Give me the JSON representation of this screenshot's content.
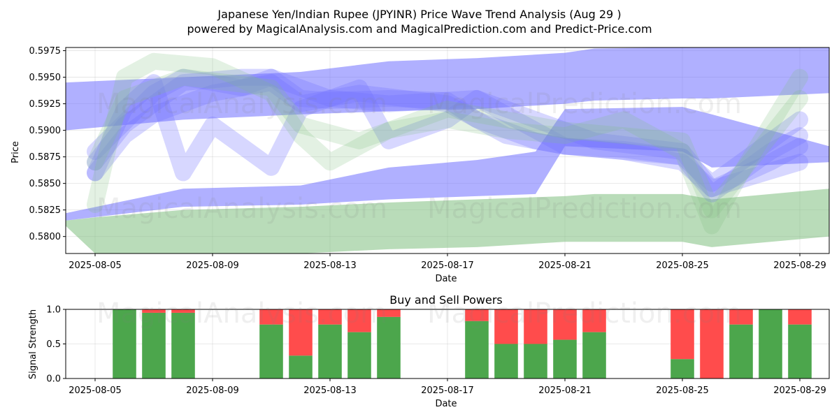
{
  "header": {
    "title": "Japanese Yen/Indian Rupee (JPYINR) Price Wave Trend Analysis (Aug 29 )",
    "subtitle": "powered by MagicalAnalysis.com and MagicalPrediction.com and Predict-Price.com"
  },
  "watermarks": [
    "MagicalAnalysis.com",
    "MagicalPrediction.com"
  ],
  "chart_data": [
    {
      "type": "area",
      "title": "",
      "xlabel": "Date",
      "ylabel": "Price",
      "x_range": [
        "2025-08-04",
        "2025-08-30"
      ],
      "ylim": [
        0.5784,
        0.5978
      ],
      "grid": true,
      "x_ticks": [
        "2025-08-05",
        "2025-08-09",
        "2025-08-13",
        "2025-08-17",
        "2025-08-21",
        "2025-08-25",
        "2025-08-29"
      ],
      "y_ticks": [
        "0.5800",
        "0.5825",
        "0.5850",
        "0.5875",
        "0.5900",
        "0.5925",
        "0.5950",
        "0.5975"
      ],
      "colors": {
        "blue": "#6f6fff",
        "green": "#7fbf7f"
      },
      "bands": [
        {
          "color": "blue",
          "x": [
            "2025-08-04",
            "2025-08-08",
            "2025-08-12",
            "2025-08-15",
            "2025-08-18",
            "2025-08-21",
            "2025-08-22",
            "2025-08-25",
            "2025-08-26",
            "2025-08-30"
          ],
          "lower": [
            0.59,
            0.591,
            0.5915,
            0.5918,
            0.592,
            0.5925,
            0.5928,
            0.593,
            0.593,
            0.5935
          ],
          "upper": [
            0.5945,
            0.595,
            0.5955,
            0.5965,
            0.5968,
            0.5973,
            0.5977,
            0.5978,
            0.5978,
            0.5978
          ]
        },
        {
          "color": "blue",
          "x": [
            "2025-08-04",
            "2025-08-08",
            "2025-08-12",
            "2025-08-15",
            "2025-08-18",
            "2025-08-20",
            "2025-08-21",
            "2025-08-25",
            "2025-08-26",
            "2025-08-30"
          ],
          "lower": [
            0.5815,
            0.5828,
            0.583,
            0.5835,
            0.5838,
            0.584,
            0.5885,
            0.588,
            0.5865,
            0.587
          ],
          "upper": [
            0.5822,
            0.5845,
            0.5848,
            0.5865,
            0.5872,
            0.588,
            0.592,
            0.5922,
            0.5915,
            0.5885
          ]
        },
        {
          "color": "green",
          "x": [
            "2025-08-04",
            "2025-08-05",
            "2025-08-08",
            "2025-08-12",
            "2025-08-15",
            "2025-08-18",
            "2025-08-21",
            "2025-08-22",
            "2025-08-25",
            "2025-08-26",
            "2025-08-30"
          ],
          "lower": [
            0.581,
            0.5784,
            0.5784,
            0.5784,
            0.5788,
            0.579,
            0.5795,
            0.5795,
            0.5795,
            0.579,
            0.58
          ],
          "upper": [
            0.5815,
            0.5818,
            0.5825,
            0.5828,
            0.5832,
            0.5835,
            0.5838,
            0.584,
            0.584,
            0.5835,
            0.5845
          ]
        }
      ],
      "wave_lines": [
        {
          "color": "blue",
          "x": [
            "2025-08-05",
            "2025-08-06",
            "2025-08-07",
            "2025-08-08",
            "2025-08-10",
            "2025-08-11",
            "2025-08-12",
            "2025-08-13",
            "2025-08-15",
            "2025-08-17",
            "2025-08-18",
            "2025-08-20",
            "2025-08-21",
            "2025-08-23",
            "2025-08-25",
            "2025-08-26",
            "2025-08-27",
            "2025-08-28",
            "2025-08-29"
          ],
          "y": [
            0.587,
            0.5905,
            0.5925,
            0.5945,
            0.595,
            0.595,
            0.593,
            0.5928,
            0.593,
            0.5928,
            0.591,
            0.589,
            0.5885,
            0.5882,
            0.5875,
            0.584,
            0.586,
            0.588,
            0.5895
          ]
        },
        {
          "color": "blue",
          "x": [
            "2025-08-05",
            "2025-08-06",
            "2025-08-07",
            "2025-08-09",
            "2025-08-11",
            "2025-08-12",
            "2025-08-14",
            "2025-08-17",
            "2025-08-19",
            "2025-08-21",
            "2025-08-23",
            "2025-08-25",
            "2025-08-26",
            "2025-08-28",
            "2025-08-29"
          ],
          "y": [
            0.586,
            0.5895,
            0.5915,
            0.5935,
            0.5945,
            0.5925,
            0.5935,
            0.5925,
            0.5895,
            0.5885,
            0.588,
            0.587,
            0.5845,
            0.587,
            0.5885
          ]
        },
        {
          "color": "blue",
          "x": [
            "2025-08-05",
            "2025-08-07",
            "2025-08-08",
            "2025-08-10",
            "2025-08-11",
            "2025-08-13",
            "2025-08-15",
            "2025-08-18",
            "2025-08-21",
            "2025-08-25",
            "2025-08-26",
            "2025-08-29"
          ],
          "y": [
            0.588,
            0.5935,
            0.595,
            0.594,
            0.595,
            0.593,
            0.5925,
            0.593,
            0.5885,
            0.5875,
            0.585,
            0.591
          ]
        },
        {
          "color": "blue",
          "x": [
            "2025-08-05",
            "2025-08-06",
            "2025-08-07",
            "2025-08-08",
            "2025-08-09",
            "2025-08-11",
            "2025-08-12",
            "2025-08-14",
            "2025-08-15",
            "2025-08-17",
            "2025-08-18",
            "2025-08-22",
            "2025-08-25",
            "2025-08-26",
            "2025-08-29"
          ],
          "y": [
            0.586,
            0.592,
            0.5945,
            0.586,
            0.5905,
            0.5865,
            0.592,
            0.594,
            0.589,
            0.591,
            0.593,
            0.589,
            0.588,
            0.5845,
            0.587
          ]
        },
        {
          "color": "green",
          "x": [
            "2025-08-05",
            "2025-08-06",
            "2025-08-07",
            "2025-08-09",
            "2025-08-11",
            "2025-08-12",
            "2025-08-13",
            "2025-08-15",
            "2025-08-17",
            "2025-08-19",
            "2025-08-21",
            "2025-08-23",
            "2025-08-25",
            "2025-08-26",
            "2025-08-27",
            "2025-08-29"
          ],
          "y": [
            0.583,
            0.595,
            0.5965,
            0.596,
            0.5935,
            0.5895,
            0.587,
            0.59,
            0.591,
            0.59,
            0.5895,
            0.591,
            0.588,
            0.581,
            0.586,
            0.595
          ]
        },
        {
          "color": "green",
          "x": [
            "2025-08-05",
            "2025-08-06",
            "2025-08-08",
            "2025-08-11",
            "2025-08-12",
            "2025-08-14",
            "2025-08-17",
            "2025-08-21",
            "2025-08-25",
            "2025-08-26",
            "2025-08-29"
          ],
          "y": [
            0.587,
            0.593,
            0.595,
            0.594,
            0.5905,
            0.589,
            0.592,
            0.59,
            0.589,
            0.5825,
            0.593
          ]
        }
      ]
    },
    {
      "type": "bar",
      "title": "Buy and Sell Powers",
      "xlabel": "Date",
      "ylabel": "Signal Strength",
      "x_range": [
        "2025-08-04",
        "2025-08-30"
      ],
      "ylim": [
        0,
        1
      ],
      "grid": true,
      "x_ticks": [
        "2025-08-05",
        "2025-08-09",
        "2025-08-13",
        "2025-08-17",
        "2025-08-21",
        "2025-08-25",
        "2025-08-29"
      ],
      "y_ticks": [
        "0.0",
        "0.5",
        "1.0"
      ],
      "colors": {
        "buy": "#4ca64c",
        "sell": "#ff4c4c"
      },
      "dates": [
        "2025-08-06",
        "2025-08-07",
        "2025-08-08",
        "2025-08-11",
        "2025-08-12",
        "2025-08-13",
        "2025-08-14",
        "2025-08-15",
        "2025-08-18",
        "2025-08-19",
        "2025-08-20",
        "2025-08-21",
        "2025-08-22",
        "2025-08-25",
        "2025-08-26",
        "2025-08-27",
        "2025-08-28",
        "2025-08-29"
      ],
      "buy": [
        1.0,
        0.95,
        0.95,
        0.78,
        0.33,
        0.78,
        0.67,
        0.89,
        0.83,
        0.5,
        0.5,
        0.56,
        0.67,
        0.28,
        0.0,
        0.78,
        1.0,
        0.78
      ]
    }
  ]
}
